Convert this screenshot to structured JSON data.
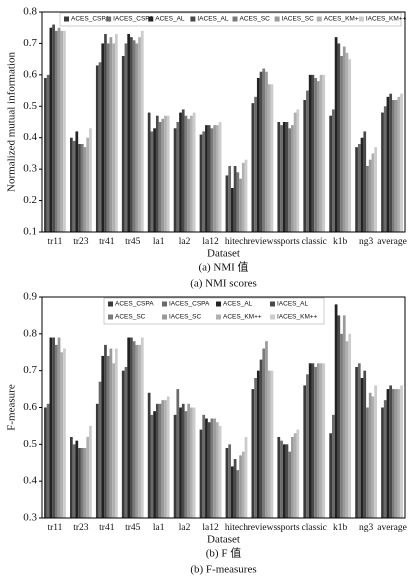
{
  "chart_data": [
    {
      "type": "bar",
      "title": "(a) NMI 值",
      "subtitle": "(a) NMI scores",
      "x_label": "Dataset",
      "y_label": "Normalized mutual information",
      "categories": [
        "tr11",
        "tr23",
        "tr41",
        "tr45",
        "la1",
        "la2",
        "la12",
        "hitech",
        "reviews",
        "sports",
        "classic",
        "k1b",
        "ng3",
        "average"
      ],
      "ylim": [
        0.1,
        0.8
      ],
      "yticks": [
        0.1,
        0.2,
        0.3,
        0.4,
        0.5,
        0.6,
        0.7,
        0.8
      ],
      "legend_columns": 8,
      "series": [
        {
          "name": "ACES_CSPA",
          "color": "#3a3a3a",
          "values": [
            0.59,
            0.4,
            0.63,
            0.66,
            0.48,
            0.43,
            0.41,
            0.28,
            0.51,
            0.45,
            0.52,
            0.47,
            0.37,
            0.48
          ]
        },
        {
          "name": "IACES_CSPA",
          "color": "#6a6a6a",
          "values": [
            0.6,
            0.39,
            0.64,
            0.7,
            0.42,
            0.45,
            0.42,
            0.31,
            0.53,
            0.44,
            0.55,
            0.49,
            0.38,
            0.5
          ]
        },
        {
          "name": "ACES_AL",
          "color": "#222222",
          "values": [
            0.75,
            0.42,
            0.7,
            0.73,
            0.43,
            0.48,
            0.44,
            0.24,
            0.59,
            0.45,
            0.6,
            0.72,
            0.4,
            0.53
          ]
        },
        {
          "name": "IACES_AL",
          "color": "#4a4a4a",
          "values": [
            0.76,
            0.38,
            0.73,
            0.72,
            0.47,
            0.49,
            0.44,
            0.31,
            0.61,
            0.45,
            0.6,
            0.7,
            0.42,
            0.54
          ]
        },
        {
          "name": "ACES_SC",
          "color": "#7a7a7a",
          "values": [
            0.74,
            0.38,
            0.7,
            0.71,
            0.45,
            0.47,
            0.43,
            0.29,
            0.62,
            0.43,
            0.59,
            0.66,
            0.31,
            0.52
          ]
        },
        {
          "name": "IACES_SC",
          "color": "#9a9a9a",
          "values": [
            0.75,
            0.37,
            0.72,
            0.7,
            0.46,
            0.46,
            0.44,
            0.27,
            0.61,
            0.44,
            0.58,
            0.69,
            0.33,
            0.52
          ]
        },
        {
          "name": "ACES_KM++",
          "color": "#b0b0b0",
          "values": [
            0.74,
            0.4,
            0.7,
            0.72,
            0.47,
            0.47,
            0.44,
            0.32,
            0.57,
            0.48,
            0.6,
            0.67,
            0.35,
            0.53
          ]
        },
        {
          "name": "IACES_KM++",
          "color": "#cccccc",
          "values": [
            0.74,
            0.43,
            0.73,
            0.74,
            0.47,
            0.48,
            0.45,
            0.33,
            0.57,
            0.49,
            0.6,
            0.65,
            0.37,
            0.54
          ]
        }
      ]
    },
    {
      "type": "bar",
      "title": "(b) F 值",
      "subtitle": "(b) F-measures",
      "x_label": "Dataset",
      "y_label": "F-measure",
      "categories": [
        "tr11",
        "tr23",
        "tr41",
        "tr45",
        "la1",
        "la2",
        "la12",
        "hitech",
        "reviews",
        "sports",
        "classic",
        "k1b",
        "ng3",
        "average"
      ],
      "ylim": [
        0.3,
        0.9
      ],
      "yticks": [
        0.3,
        0.4,
        0.5,
        0.6,
        0.7,
        0.8,
        0.9
      ],
      "legend_columns": 4,
      "series": [
        {
          "name": "ACES_CSPA",
          "color": "#3a3a3a",
          "values": [
            0.6,
            0.52,
            0.61,
            0.7,
            0.64,
            0.58,
            0.54,
            0.49,
            0.65,
            0.52,
            0.66,
            0.53,
            0.71,
            0.6
          ]
        },
        {
          "name": "IACES_CSPA",
          "color": "#6a6a6a",
          "values": [
            0.61,
            0.5,
            0.67,
            0.71,
            0.58,
            0.65,
            0.58,
            0.5,
            0.68,
            0.51,
            0.69,
            0.58,
            0.72,
            0.62
          ]
        },
        {
          "name": "ACES_AL",
          "color": "#222222",
          "values": [
            0.79,
            0.51,
            0.74,
            0.79,
            0.59,
            0.6,
            0.57,
            0.44,
            0.7,
            0.5,
            0.72,
            0.88,
            0.68,
            0.65
          ]
        },
        {
          "name": "IACES_AL",
          "color": "#4a4a4a",
          "values": [
            0.79,
            0.49,
            0.77,
            0.79,
            0.61,
            0.61,
            0.56,
            0.46,
            0.73,
            0.5,
            0.72,
            0.85,
            0.7,
            0.66
          ]
        },
        {
          "name": "ACES_SC",
          "color": "#7a7a7a",
          "values": [
            0.77,
            0.49,
            0.74,
            0.78,
            0.61,
            0.59,
            0.57,
            0.43,
            0.76,
            0.48,
            0.71,
            0.8,
            0.6,
            0.65
          ]
        },
        {
          "name": "IACES_SC",
          "color": "#9a9a9a",
          "values": [
            0.79,
            0.49,
            0.76,
            0.77,
            0.62,
            0.61,
            0.57,
            0.47,
            0.78,
            0.52,
            0.72,
            0.85,
            0.64,
            0.65
          ]
        },
        {
          "name": "ACES_KM++",
          "color": "#b0b0b0",
          "values": [
            0.75,
            0.52,
            0.72,
            0.77,
            0.62,
            0.6,
            0.56,
            0.48,
            0.7,
            0.53,
            0.72,
            0.78,
            0.63,
            0.65
          ]
        },
        {
          "name": "IACES_KM++",
          "color": "#cccccc",
          "values": [
            0.76,
            0.55,
            0.76,
            0.79,
            0.63,
            0.6,
            0.55,
            0.52,
            0.7,
            0.54,
            0.72,
            0.8,
            0.66,
            0.66
          ]
        }
      ]
    }
  ]
}
